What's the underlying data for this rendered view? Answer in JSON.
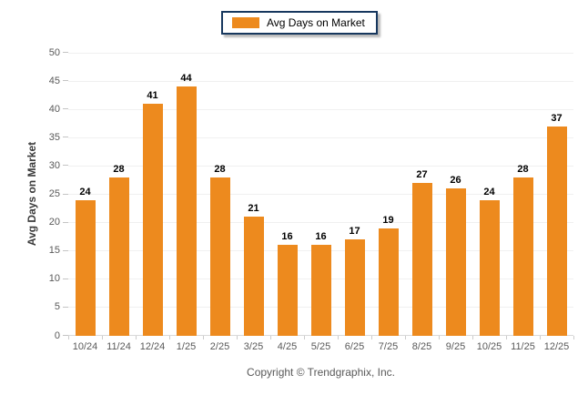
{
  "chart_data": {
    "type": "bar",
    "title": "",
    "legend": {
      "label": "Avg Days on Market",
      "position": "top-center"
    },
    "categories": [
      "10/24",
      "11/24",
      "12/24",
      "1/25",
      "2/25",
      "3/25",
      "4/25",
      "5/25",
      "6/25",
      "7/25",
      "8/25",
      "9/25",
      "10/25",
      "11/25",
      "12/25"
    ],
    "values": [
      24,
      28,
      41,
      44,
      28,
      21,
      16,
      16,
      17,
      19,
      27,
      26,
      24,
      28,
      37
    ],
    "xlabel": "",
    "ylabel": "Avg Days on Market",
    "ylim": [
      0,
      50
    ],
    "yticks": [
      0,
      5,
      10,
      15,
      20,
      25,
      30,
      35,
      40,
      45,
      50
    ],
    "grid": "horizontal",
    "data_labels": true,
    "colors": {
      "bar": "#ED8A1E",
      "legend_border": "#17375E",
      "gridline": "#f0f0f0",
      "axis_line": "#d9d9d9",
      "tick_label": "#595959",
      "data_label": "#000000"
    }
  },
  "footer": {
    "copyright": "Copyright © Trendgraphix, Inc."
  }
}
